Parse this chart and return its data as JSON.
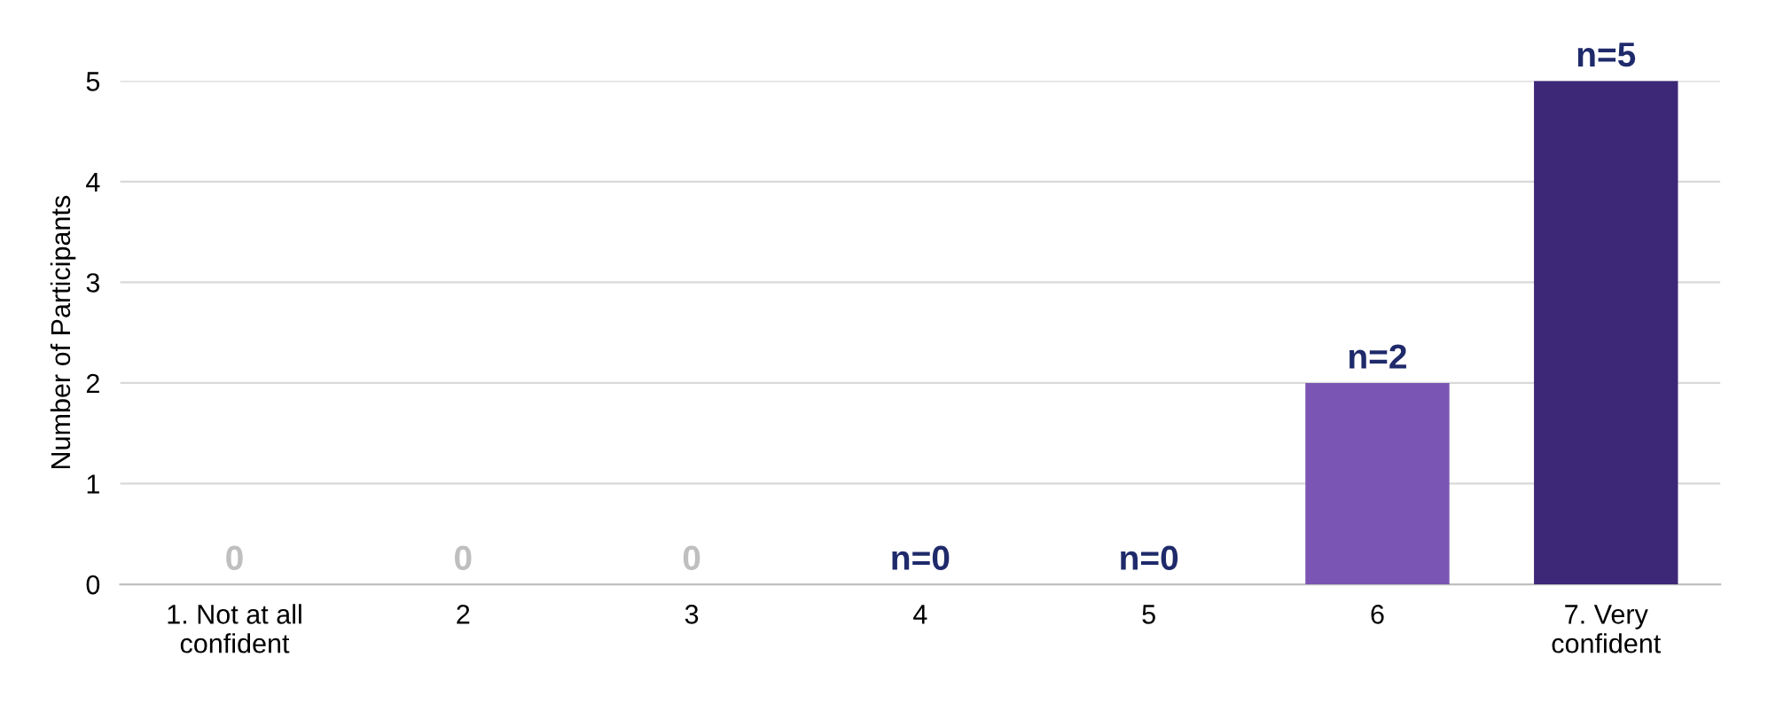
{
  "chart_data": {
    "type": "bar",
    "ylabel": "Number of Participants",
    "categories": [
      "1. Not at all\nconfident",
      "2",
      "3",
      "4",
      "5",
      "6",
      "7. Very\nconfident"
    ],
    "values": [
      0,
      0,
      0,
      0,
      0,
      2,
      5
    ],
    "colors": [
      "#bfbfbf",
      "#bfbfbf",
      "#bfbfbf",
      "#1f2a6b",
      "#1f2a6b",
      "#7a55b3",
      "#3d2777"
    ],
    "value_labels": [
      "0",
      "0",
      "0",
      "n=0",
      "n=0",
      "n=2",
      "n=5"
    ],
    "ylim": [
      0,
      5
    ],
    "yticks": [
      0,
      1,
      2,
      3,
      4,
      5
    ],
    "grid": "y",
    "legend": false
  }
}
